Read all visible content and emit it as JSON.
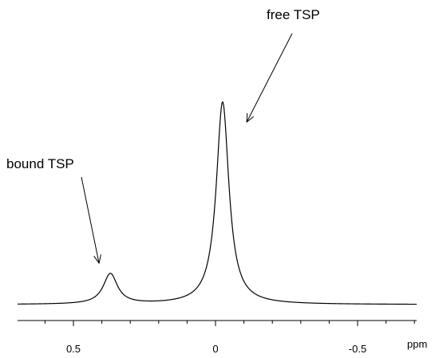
{
  "chart_data": {
    "type": "line",
    "xlabel": "ppm",
    "x_direction": "reversed",
    "xlim": [
      0.7,
      -0.7
    ],
    "x_ticks": [
      0.5,
      0,
      -0.5
    ],
    "x_tick_labels": [
      "0.5",
      "0",
      "-0.5"
    ],
    "y_axis_visible": false,
    "grid": false,
    "line_color": "#000000",
    "peaks": [
      {
        "label": "bound TSP",
        "position_ppm": 0.37,
        "relative_height": 0.15
      },
      {
        "label": "free TSP",
        "position_ppm": -0.025,
        "relative_height": 1.0
      }
    ],
    "annotations": [
      {
        "text": "bound TSP",
        "points_to_ppm": 0.41
      },
      {
        "text": "free TSP",
        "points_to_ppm": -0.11
      }
    ]
  }
}
